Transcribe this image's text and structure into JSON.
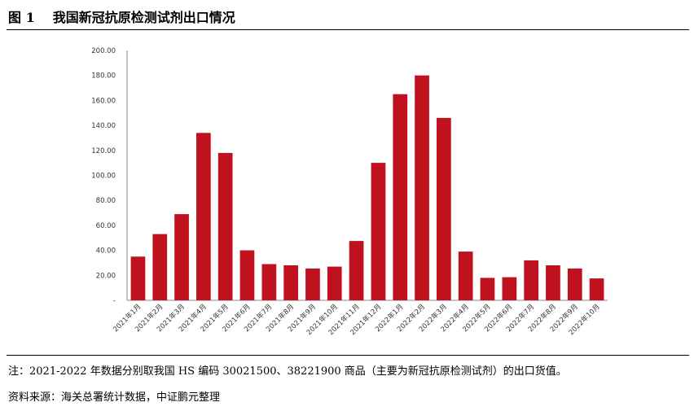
{
  "header": {
    "figure_label": "图 1",
    "title": "我国新冠抗原检测试剂出口情况"
  },
  "chart_data": {
    "type": "bar",
    "title": "",
    "xlabel": "",
    "ylabel": "",
    "ylim": [
      0,
      200
    ],
    "yticks": [
      "200.00",
      "180.00",
      "160.00",
      "140.00",
      "120.00",
      "100.00",
      "80.00",
      "60.00",
      "40.00",
      "20.00",
      "-"
    ],
    "bar_color": "#c0111f",
    "categories": [
      "2021年1月",
      "2021年2月",
      "2021年3月",
      "2021年4月",
      "2021年5月",
      "2021年6月",
      "2021年7月",
      "2021年8月",
      "2021年9月",
      "2021年10月",
      "2021年11月",
      "2021年12月",
      "2022年1月",
      "2022年2月",
      "2022年3月",
      "2022年4月",
      "2022年5月",
      "2022年6月",
      "2022年7月",
      "2022年8月",
      "2022年9月",
      "2022年10月"
    ],
    "values": [
      35.0,
      53.0,
      69.0,
      134.0,
      118.0,
      40.0,
      29.0,
      28.0,
      25.5,
      27.0,
      47.5,
      110.0,
      165.0,
      180.0,
      146.0,
      39.0,
      18.0,
      18.5,
      32.0,
      28.0,
      25.5,
      17.5
    ]
  },
  "footer": {
    "note": "注：2021-2022 年数据分别取我国 HS 编码 30021500、38221900 商品（主要为新冠抗原检测试剂）的出口货值。",
    "source": "资料来源：海关总署统计数据，中证鹏元整理"
  }
}
